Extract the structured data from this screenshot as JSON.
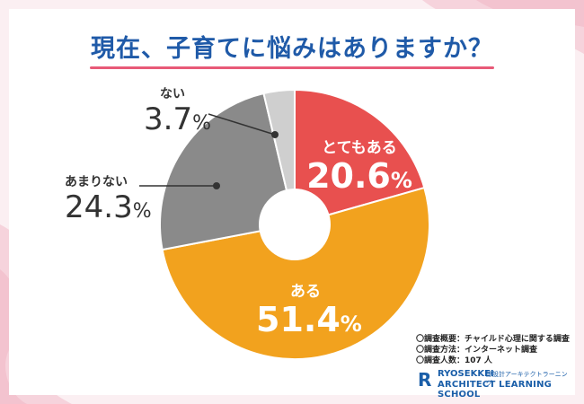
{
  "title": "現在、子育てに悩みはありますか？",
  "colors": {
    "background": "#fbeff2",
    "title": "#1f5aa8",
    "title_underline": "#e85a78",
    "wave": "#f6d3dc"
  },
  "chart_data": {
    "type": "pie",
    "variant": "donut",
    "title": "現在、子育てに悩みはありますか？",
    "unit": "%",
    "slices": [
      {
        "label": "とてもある",
        "value": 20.6,
        "value_text": "20.6",
        "color": "#e8504f"
      },
      {
        "label": "ある",
        "value": 51.4,
        "value_text": "51.4",
        "color": "#f2a21e"
      },
      {
        "label": "あまりない",
        "value": 24.3,
        "value_text": "24.3",
        "color": "#8a8a8a"
      },
      {
        "label": "ない",
        "value": 3.7,
        "value_text": "3.7",
        "color": "#cfcfcf"
      }
    ]
  },
  "survey": {
    "line1": "〇調査概要：チャイルド心理に関する調査",
    "line2": "〇調査方法：インターネット調査",
    "line3": "〇調査人数：107 人"
  },
  "logo": {
    "mark": "R",
    "brand": "RYOSEKKEI",
    "jp": "諒設計アーキテクトラーニング",
    "sub": "ARCHITECT LEARNING SCHOOL"
  }
}
